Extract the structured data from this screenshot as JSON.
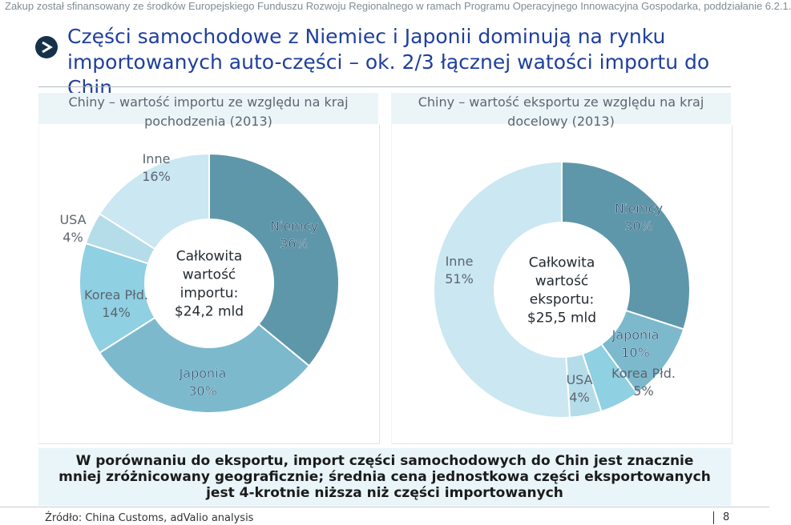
{
  "header_note": "Zakup został sfinansowany ze środków Europejskiego Funduszu Rozwoju Regionalnego w ramach Programu Operacyjnego Innowacyjna Gospodarka, poddziałanie 6.2.1.",
  "title_line1": "Części samochodowe z Niemiec i Japonii dominują na rynku",
  "title_line2": "importowanych auto-części – ok. 2/3 łącznej watości importu do Chin",
  "chart_data": [
    {
      "type": "pie",
      "title_line1": "Chiny – wartość importu ze względu na kraj",
      "title_line2": "pochodzenia (2013)",
      "center_lines": [
        "Całkowita",
        "wartość",
        "importu:",
        "$24,2 mld"
      ],
      "colors": [
        "#5e97aa",
        "#7cb9cd",
        "#8fd0e2",
        "#b5dce9",
        "#cbe7f1"
      ],
      "slices": [
        {
          "name": "Niemcy",
          "value": 36,
          "pct": "36%"
        },
        {
          "name": "Japonia",
          "value": 30,
          "pct": "30%"
        },
        {
          "name": "Korea Płd.",
          "value": 14,
          "pct": "14%"
        },
        {
          "name": "USA",
          "value": 4,
          "pct": "4%"
        },
        {
          "name": "Inne",
          "value": 16,
          "pct": "16%"
        }
      ]
    },
    {
      "type": "pie",
      "title_line1": "Chiny – wartość eksportu ze względu na kraj",
      "title_line2": "docelowy (2013)",
      "center_lines": [
        "Całkowita",
        "wartość",
        "eksportu:",
        "$25,5 mld"
      ],
      "colors": [
        "#5e97aa",
        "#7cb9cd",
        "#8fd0e2",
        "#b5dce9",
        "#cbe7f1"
      ],
      "slices": [
        {
          "name": "Niemcy",
          "value": 30,
          "pct": "30%"
        },
        {
          "name": "Japonia",
          "value": 10,
          "pct": "10%"
        },
        {
          "name": "Korea Płd.",
          "value": 5,
          "pct": "5%"
        },
        {
          "name": "USA",
          "value": 4,
          "pct": "4%"
        },
        {
          "name": "Inne",
          "value": 51,
          "pct": "51%"
        }
      ]
    }
  ],
  "summary": "W porównaniu do eksportu, import części samochodowych do Chin jest znacznie mniej zróżnicowany geograficznie; średnia cena jednostkowa części eksportowanych jest 4-krotnie niższa niż części importowanych",
  "source": "Źródło: China Customs, adValio analysis",
  "page_number": "8"
}
